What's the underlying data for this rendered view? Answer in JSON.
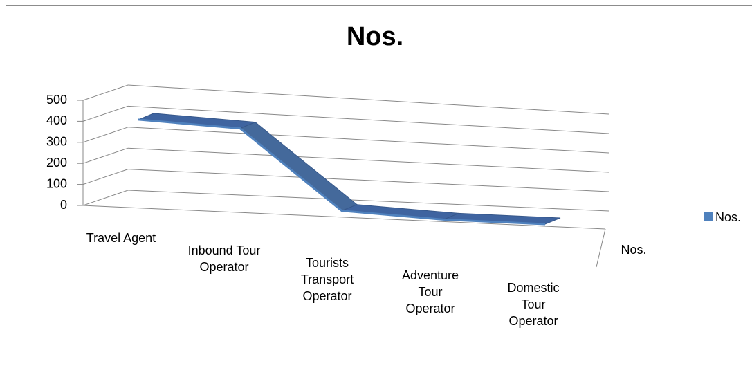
{
  "chart_data": {
    "type": "line3d",
    "title": "Nos.",
    "categories": [
      "Travel Agent",
      "Inbound Tour Operator",
      "Tourists Transport Operator",
      "Adventure Tour Operator",
      "Domestic Tour Operator"
    ],
    "series": [
      {
        "name": "Nos.",
        "color": "#4f81bd",
        "values": [
          420,
          400,
          30,
          10,
          10
        ]
      }
    ],
    "ylim": [
      0,
      500
    ],
    "yticks": [
      0,
      100,
      200,
      300,
      400,
      500
    ],
    "grid": true,
    "legend": "right"
  }
}
